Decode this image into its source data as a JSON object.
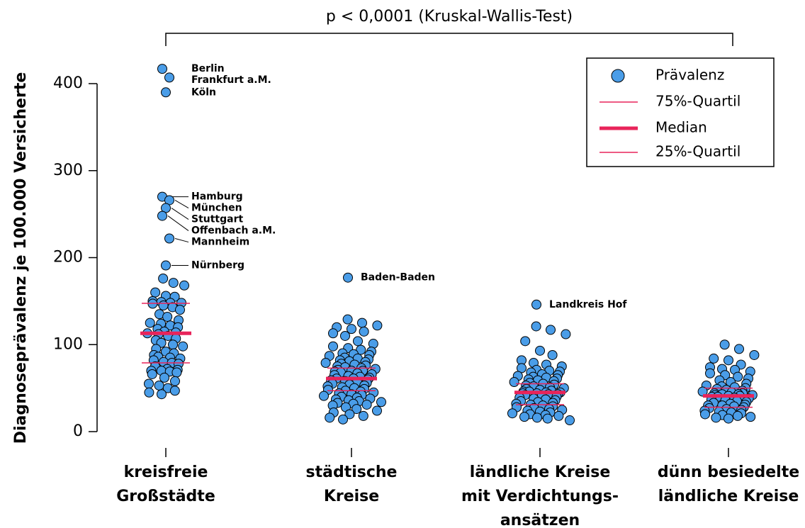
{
  "chart_data": {
    "type": "strip",
    "title": "p < 0,0001 (Kruskal-Wallis-Test)",
    "y_label": "Diagnoseprävalenz je 100.000 Versicherte",
    "categories": [
      [
        "kreisfreie",
        "Großstädte"
      ],
      [
        "städtische",
        "Kreise"
      ],
      [
        "ländliche Kreise",
        "mit Verdichtungs-",
        "ansätzen"
      ],
      [
        "dünn besiedelte",
        "ländliche Kreise"
      ]
    ],
    "ylim": [
      0,
      400
    ],
    "yticks": [
      0,
      100,
      200,
      300,
      400
    ],
    "point_color": "#4a9de8",
    "line_color": "#e8245a",
    "legend": {
      "position": "top-right",
      "entries": [
        "Prävalenz",
        "75%-Quartil",
        "Median",
        "25%-Quartil"
      ]
    },
    "groups": [
      {
        "values": [
          176,
          171,
          168,
          160,
          156,
          155,
          150,
          149,
          148,
          148,
          147,
          145,
          143,
          140,
          135,
          132,
          128,
          125,
          124,
          122,
          120,
          118,
          115,
          114,
          113,
          112,
          110,
          107,
          105,
          102,
          100,
          98,
          95,
          92,
          90,
          88,
          86,
          85,
          84,
          82,
          80,
          79,
          78,
          75,
          72,
          71,
          70,
          70,
          69,
          68,
          66,
          62,
          58,
          55,
          53,
          50,
          47,
          45,
          43
        ],
        "labeled": [
          {
            "label": "Berlin",
            "value": 417
          },
          {
            "label": "Frankfurt a.M.",
            "value": 407
          },
          {
            "label": "Köln",
            "value": 390
          },
          {
            "label": "Hamburg",
            "value": 270
          },
          {
            "label": "München",
            "value": 266
          },
          {
            "label": "Stuttgart",
            "value": 257
          },
          {
            "label": "Offenbach a.M.",
            "value": 248
          },
          {
            "label": "Mannheim",
            "value": 222
          },
          {
            "label": "Nürnberg",
            "value": 191
          }
        ],
        "q75": 147.5,
        "median": 113,
        "q25": 79
      },
      {
        "values": [
          129,
          125,
          122,
          120,
          118,
          115,
          113,
          110,
          104,
          101,
          98,
          96,
          94,
          92,
          90,
          89,
          88,
          87,
          85,
          84,
          83,
          82,
          81,
          80,
          79,
          78,
          77,
          76,
          75,
          74,
          73,
          72,
          71,
          70,
          70,
          69,
          68,
          67,
          66,
          65,
          64,
          63,
          62,
          61,
          61,
          60,
          59,
          58,
          57,
          56,
          55,
          54,
          53,
          52,
          51,
          50,
          49,
          48,
          47,
          46,
          45,
          44,
          43,
          42,
          41,
          40,
          39,
          38,
          37,
          36,
          35,
          34,
          33,
          32,
          31,
          30,
          28,
          26,
          24,
          22,
          20,
          18,
          16,
          14
        ],
        "labeled": [
          {
            "label": "Baden-Baden",
            "value": 177
          }
        ],
        "q75": 73,
        "median": 61,
        "q25": 47
      },
      {
        "values": [
          121,
          117,
          112,
          104,
          93,
          88,
          82,
          79,
          77,
          75,
          73,
          71,
          70,
          69,
          68,
          66,
          65,
          64,
          63,
          62,
          61,
          60,
          59,
          58,
          57,
          56,
          55,
          54,
          53,
          52,
          51,
          50,
          49,
          48,
          47,
          46,
          46,
          45,
          45,
          44,
          44,
          43,
          43,
          42,
          41,
          40,
          39,
          38,
          37,
          36,
          35,
          34,
          33,
          32,
          31,
          30,
          29,
          28,
          27,
          26,
          25,
          24,
          23,
          22,
          21,
          20,
          19,
          18,
          17,
          16,
          15,
          13
        ],
        "labeled": [
          {
            "label": "Landkreis Hof",
            "value": 146
          }
        ],
        "q75": 55,
        "median": 45,
        "q25": 31
      },
      {
        "values": [
          100,
          95,
          88,
          84,
          82,
          77,
          74,
          72,
          71,
          69,
          67,
          65,
          63,
          61,
          59,
          57,
          55,
          53,
          52,
          51,
          50,
          49,
          48,
          47,
          46,
          45,
          45,
          44,
          44,
          43,
          43,
          42,
          42,
          41,
          41,
          40,
          40,
          39,
          38,
          37,
          36,
          35,
          34,
          33,
          32,
          31,
          30,
          30,
          29,
          28,
          27,
          26,
          25,
          24,
          23,
          22,
          21,
          20,
          19,
          18,
          17,
          16,
          15
        ],
        "labeled": [],
        "q75": 50,
        "median": 41,
        "q25": 28
      }
    ]
  }
}
